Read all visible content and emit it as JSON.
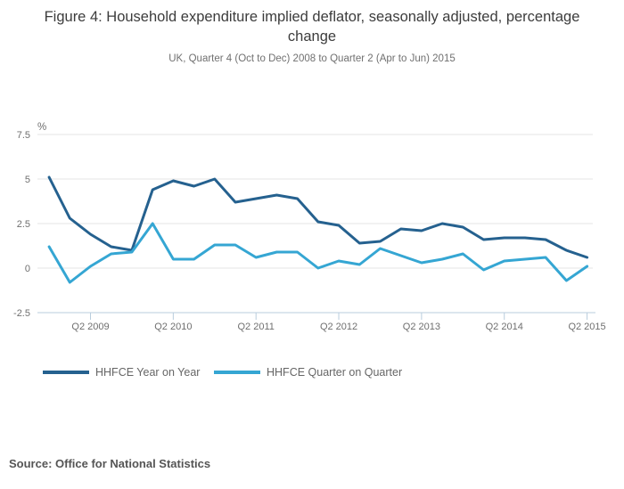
{
  "header": {
    "title": "Figure 4: Household expenditure implied deflator, seasonally adjusted, percentage change",
    "subtitle": "UK, Quarter 4 (Oct to Dec) 2008 to Quarter 2 (Apr to Jun) 2015"
  },
  "chart_data": {
    "type": "line",
    "title": "Figure 4: Household expenditure implied deflator, seasonally adjusted, percentage change",
    "subtitle": "UK, Quarter 4 (Oct to Dec) 2008 to Quarter 2 (Apr to Jun) 2015",
    "ylabel": "%",
    "ylim": [
      -2.5,
      7.5
    ],
    "y_ticks": [
      7.5,
      5,
      2.5,
      0,
      -2.5
    ],
    "grid": "horizontal-only",
    "legend_position": "bottom",
    "x_quarters": [
      "Q4 2008",
      "Q1 2009",
      "Q2 2009",
      "Q3 2009",
      "Q4 2009",
      "Q1 2010",
      "Q2 2010",
      "Q3 2010",
      "Q4 2010",
      "Q1 2011",
      "Q2 2011",
      "Q3 2011",
      "Q4 2011",
      "Q1 2012",
      "Q2 2012",
      "Q3 2012",
      "Q4 2012",
      "Q1 2013",
      "Q2 2013",
      "Q3 2013",
      "Q4 2013",
      "Q1 2014",
      "Q2 2014",
      "Q3 2014",
      "Q4 2014",
      "Q1 2015",
      "Q2 2015"
    ],
    "x_tick_labels": [
      "Q2 2009",
      "Q2 2010",
      "Q2 2011",
      "Q2 2012",
      "Q2 2013",
      "Q2 2014",
      "Q2 2015"
    ],
    "x_tick_indices": [
      2,
      6,
      10,
      14,
      18,
      22,
      26
    ],
    "series": [
      {
        "name": "HHFCE Year on Year",
        "color": "#25618f",
        "values": [
          5.1,
          2.8,
          1.9,
          1.2,
          1.0,
          4.4,
          4.9,
          4.6,
          5.0,
          3.7,
          3.9,
          4.1,
          3.9,
          2.6,
          2.4,
          1.4,
          1.5,
          2.2,
          2.1,
          2.5,
          2.3,
          1.6,
          1.7,
          1.7,
          1.6,
          1.0,
          0.6
        ]
      },
      {
        "name": "HHFCE Quarter on Quarter",
        "color": "#35a6d3",
        "values": [
          1.2,
          -0.8,
          0.1,
          0.8,
          0.9,
          2.5,
          0.5,
          0.5,
          1.3,
          1.3,
          0.6,
          0.9,
          0.9,
          0.0,
          0.4,
          0.2,
          1.1,
          0.7,
          0.3,
          0.5,
          0.8,
          -0.1,
          0.4,
          0.5,
          0.6,
          -0.7,
          0.1
        ]
      }
    ],
    "colors": {
      "grid": "#e4e4e4",
      "axis": "#b9cddd"
    }
  },
  "footer": {
    "source": "Source: Office for National Statistics"
  }
}
